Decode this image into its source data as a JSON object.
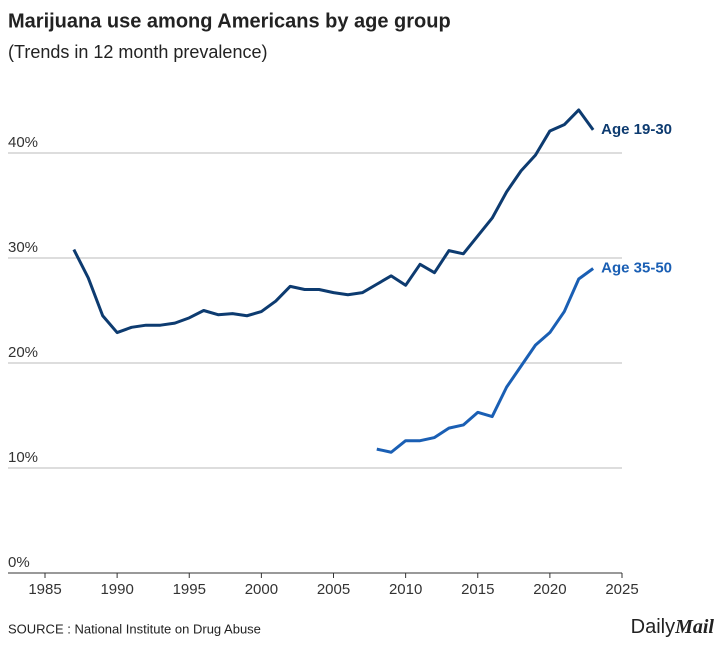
{
  "chart_data": {
    "type": "line",
    "title": "Marijuana use among Americans by age group",
    "subtitle": "(Trends in 12 month prevalence)",
    "x": [
      1987,
      1988,
      1989,
      1990,
      1991,
      1992,
      1993,
      1994,
      1995,
      1996,
      1997,
      1998,
      1999,
      2000,
      2001,
      2002,
      2003,
      2004,
      2005,
      2006,
      2007,
      2008,
      2009,
      2010,
      2011,
      2012,
      2013,
      2014,
      2015,
      2016,
      2017,
      2018,
      2019,
      2020,
      2021,
      2022,
      2023
    ],
    "series": [
      {
        "name": "Age 19-30",
        "color": "#0d3b70",
        "values": [
          30.8,
          28.1,
          24.5,
          22.9,
          23.4,
          23.6,
          23.6,
          23.8,
          24.3,
          25.0,
          24.6,
          24.7,
          24.5,
          24.9,
          25.9,
          27.3,
          27.0,
          27.0,
          26.7,
          26.5,
          26.7,
          27.5,
          28.3,
          27.4,
          29.4,
          28.6,
          30.7,
          30.4,
          32.1,
          33.8,
          36.3,
          38.3,
          39.8,
          42.1,
          42.7,
          44.1,
          42.2
        ]
      },
      {
        "name": "Age 35-50",
        "color": "#1a5fb4",
        "values": [
          null,
          null,
          null,
          null,
          null,
          null,
          null,
          null,
          null,
          null,
          null,
          null,
          null,
          null,
          null,
          null,
          null,
          null,
          null,
          null,
          null,
          11.8,
          11.5,
          12.6,
          12.6,
          12.9,
          13.8,
          14.1,
          15.3,
          14.9,
          17.7,
          19.7,
          21.7,
          22.9,
          24.9,
          28.0,
          29.0
        ]
      }
    ],
    "xlim": [
      1985,
      2025
    ],
    "xticks": [
      1985,
      1990,
      1995,
      2000,
      2005,
      2010,
      2015,
      2020,
      2025
    ],
    "ylim": [
      0,
      45
    ],
    "yticks": [
      {
        "value": 0,
        "label": "0%"
      },
      {
        "value": 10,
        "label": "10%"
      },
      {
        "value": 20,
        "label": "20%"
      },
      {
        "value": 30,
        "label": "30%"
      },
      {
        "value": 40,
        "label": "40%"
      }
    ],
    "grid": true,
    "source": "SOURCE : National Institute on Drug Abuse",
    "logo": [
      "Daily",
      "Mail"
    ]
  }
}
